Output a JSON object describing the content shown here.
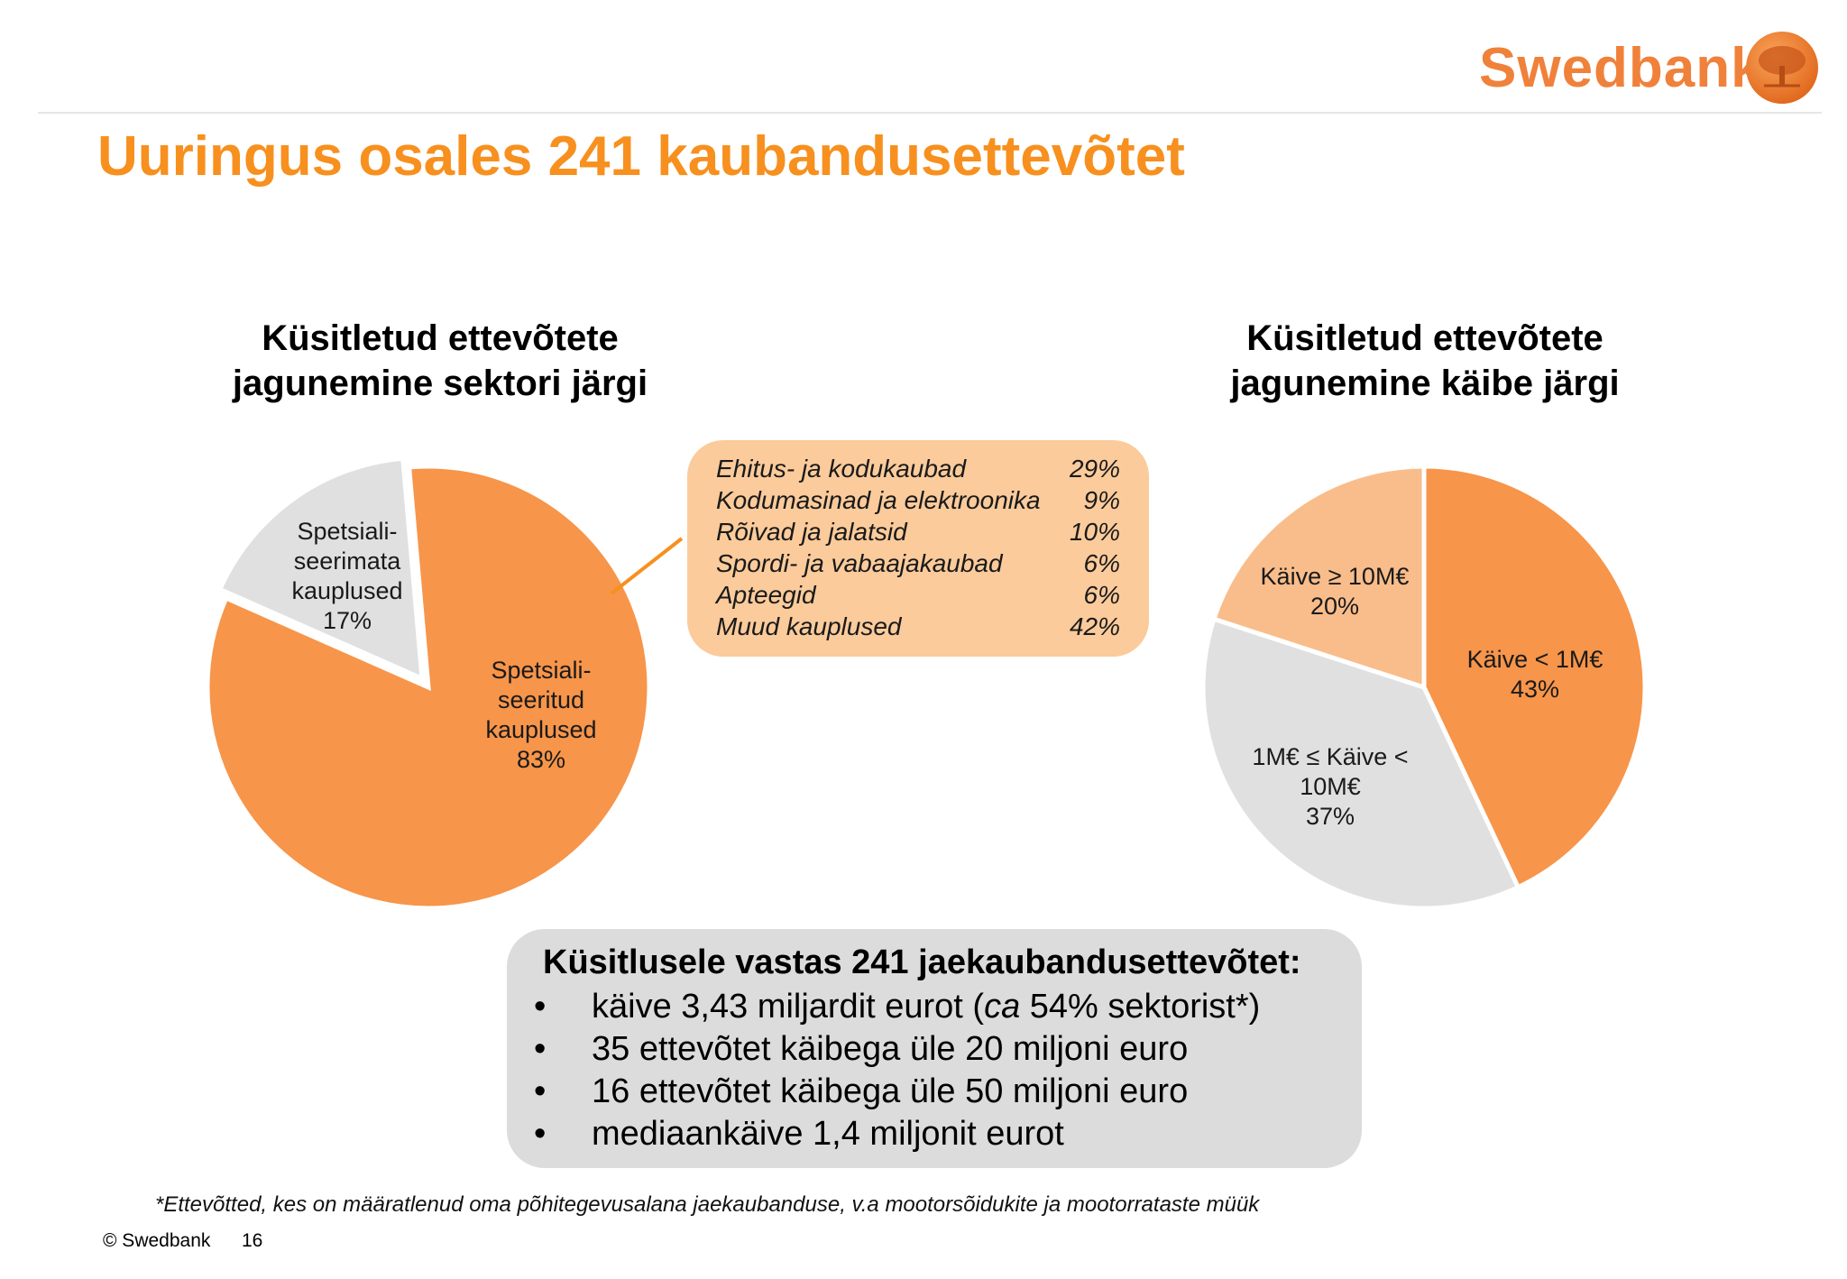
{
  "brand": {
    "name": "Swedbank",
    "color": "#f0813a"
  },
  "title": "Uuringus osales 241 kaubandusettevõtet",
  "colors": {
    "orange": "#f7954a",
    "light_orange": "#f9bd8b",
    "gray": "#e0e0e0",
    "callout": "#fbcb9b",
    "title": "#f7901e"
  },
  "chart_data": [
    {
      "type": "pie",
      "title": [
        "Küsitletud ettevõtete",
        "jagunemine sektori järgi"
      ],
      "slices": [
        {
          "label": [
            "Spetsiali-",
            "seeritud",
            "kauplused",
            "83%"
          ],
          "value": 83,
          "color": "#f7954a"
        },
        {
          "label": [
            "Spetsiali-",
            "seerimata",
            "kauplused",
            "17%"
          ],
          "value": 17,
          "color": "#e0e0e0"
        }
      ]
    },
    {
      "type": "pie",
      "title": [
        "Küsitletud ettevõtete",
        "jagunemine käibe järgi"
      ],
      "slices": [
        {
          "label": [
            "Käive < 1M€",
            "43%"
          ],
          "value": 43,
          "color": "#f7954a"
        },
        {
          "label": [
            "1M€ ≤ Käive <",
            "10M€",
            "37%"
          ],
          "value": 37,
          "color": "#e0e0e0"
        },
        {
          "label": [
            "Käive ≥ 10M€",
            "20%"
          ],
          "value": 20,
          "color": "#f9bd8b"
        }
      ]
    },
    {
      "type": "table",
      "rows": [
        {
          "label": "Ehitus- ja kodukaubad",
          "value": "29%"
        },
        {
          "label": "Kodumasinad ja elektroonika",
          "value": "9%"
        },
        {
          "label": "Rõivad ja jalatsid",
          "value": "10%"
        },
        {
          "label": "Spordi- ja vabaajakaubad",
          "value": "6%"
        },
        {
          "label": "Apteegid",
          "value": "6%"
        },
        {
          "label": "Muud kauplused",
          "value": "42%"
        }
      ]
    }
  ],
  "summary": {
    "heading": "Küsitlusele vastas 241 jaekaubandusettevõtet:",
    "bullet": "•",
    "item1": {
      "a": "käive 3,43 miljardit eurot (",
      "b": "ca",
      "c": " 54% sektorist*)"
    },
    "item2": "35 ettevõtet käibega üle 20 miljoni euro",
    "item3": "16 ettevõtet käibega üle 50 miljoni euro",
    "item4": "mediaankäive 1,4 miljonit eurot"
  },
  "footnote": "*Ettevõtted, kes on määratlenud oma põhitegevusalana jaekaubanduse, v.a mootorsõidukite ja mootorrataste müük",
  "copyright": "© Swedbank",
  "page_number": "16"
}
